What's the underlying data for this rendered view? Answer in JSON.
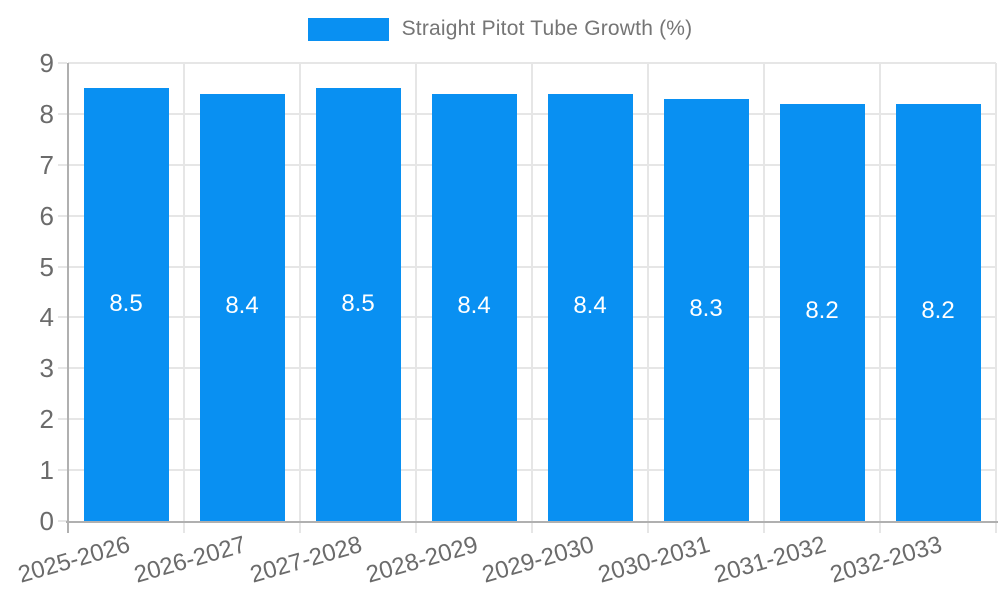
{
  "chart_data": {
    "type": "bar",
    "title": "Straight Pitot Tube Growth (%)",
    "categories": [
      "2025-2026",
      "2026-2027",
      "2027-2028",
      "2028-2029",
      "2029-2030",
      "2030-2031",
      "2031-2032",
      "2032-2033"
    ],
    "series": [
      {
        "name": "Straight Pitot Tube Growth (%)",
        "values": [
          8.5,
          8.4,
          8.5,
          8.4,
          8.4,
          8.3,
          8.2,
          8.2
        ],
        "color": "#0990F2"
      }
    ],
    "data_labels": [
      "8.5",
      "8.4",
      "8.5",
      "8.4",
      "8.4",
      "8.3",
      "8.2",
      "8.2"
    ],
    "xlabel": "",
    "ylabel": "",
    "ylim": [
      0,
      9
    ],
    "yticks": [
      "0",
      "1",
      "2",
      "3",
      "4",
      "5",
      "6",
      "7",
      "8",
      "9"
    ],
    "grid": true,
    "legend_position": "top-center"
  },
  "colors": {
    "bar": "#0990F2",
    "data_label_text": "#ffffff",
    "grid_line": "#e6e6e6",
    "axis_line": "#b0b0b0",
    "axis_text": "#6b6b6b",
    "legend_text": "#757575",
    "background": "#ffffff"
  }
}
